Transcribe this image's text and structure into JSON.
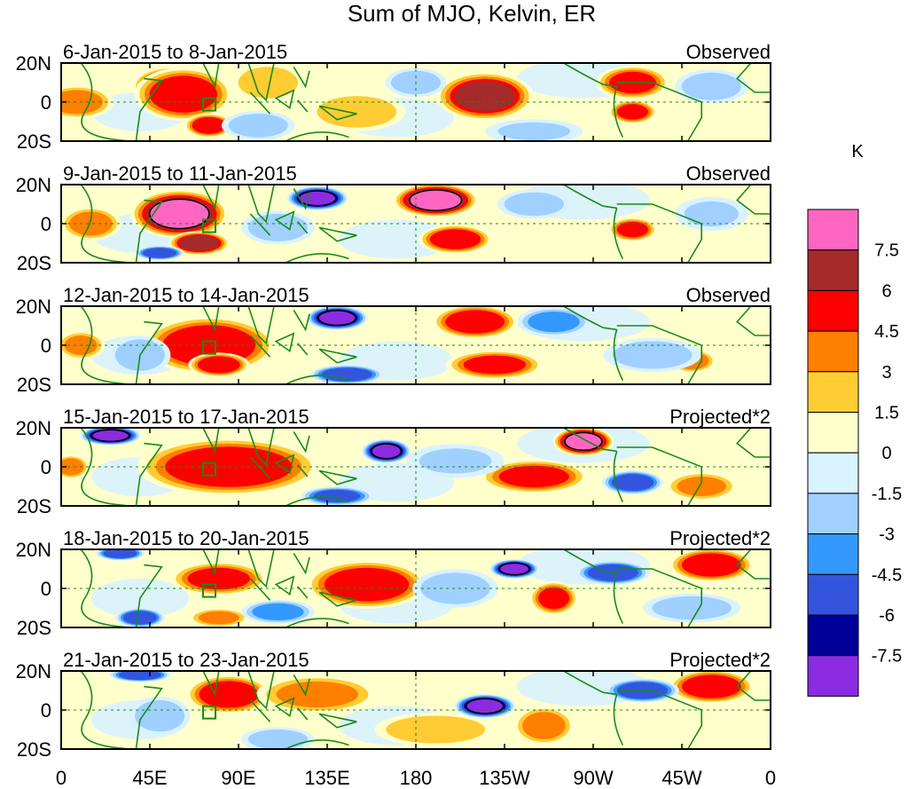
{
  "chart_data": {
    "type": "heatmap",
    "title": "Sum of MJO, Kelvin, ER",
    "units_label": "K",
    "x_ticks": [
      "0",
      "45E",
      "90E",
      "135E",
      "180",
      "135W",
      "90W",
      "45W",
      "0"
    ],
    "x_range_deg_east": [
      0,
      360
    ],
    "y_ticks": [
      "20N",
      "0",
      "20S"
    ],
    "y_range_deg": [
      -20,
      20
    ],
    "colorbar": {
      "levels": [
        "7.5",
        "6",
        "4.5",
        "3",
        "1.5",
        "0",
        "-1.5",
        "-3",
        "-4.5",
        "-6",
        "-7.5"
      ],
      "colors": [
        "#ff66c2",
        "#a52a2a",
        "#ff0000",
        "#ff7f00",
        "#ffcc33",
        "#ffffcc",
        "#d9f2ff",
        "#a0d0ff",
        "#3399ff",
        "#3355dd",
        "#000099",
        "#8b2be2"
      ]
    },
    "panels": [
      {
        "date_range": "6-Jan-2015 to 8-Jan-2015",
        "label": "Observed",
        "blobs": [
          {
            "lon": 55,
            "lat": 8,
            "value": 8,
            "width_deg": 30,
            "height_deg": 16
          },
          {
            "lon": 62,
            "lat": 4,
            "value": 6,
            "width_deg": 40,
            "height_deg": 22
          },
          {
            "lon": 8,
            "lat": 0,
            "value": 4,
            "width_deg": 30,
            "height_deg": 14
          },
          {
            "lon": 75,
            "lat": -12,
            "value": 6,
            "width_deg": 20,
            "height_deg": 10
          },
          {
            "lon": 105,
            "lat": 10,
            "value": 3,
            "width_deg": 30,
            "height_deg": 16
          },
          {
            "lon": 215,
            "lat": 3,
            "value": 6.5,
            "width_deg": 40,
            "height_deg": 20
          },
          {
            "lon": 290,
            "lat": 10,
            "value": 5,
            "width_deg": 30,
            "height_deg": 14
          },
          {
            "lon": 290,
            "lat": -5,
            "value": 5,
            "width_deg": 20,
            "height_deg": 10
          },
          {
            "lon": 150,
            "lat": -5,
            "value": 3,
            "width_deg": 40,
            "height_deg": 16
          },
          {
            "lon": 100,
            "lat": -12,
            "value": -3,
            "width_deg": 30,
            "height_deg": 12
          },
          {
            "lon": 180,
            "lat": 10,
            "value": -3,
            "width_deg": 25,
            "height_deg": 12
          },
          {
            "lon": 330,
            "lat": 8,
            "value": -3,
            "width_deg": 30,
            "height_deg": 14
          },
          {
            "lon": 240,
            "lat": -15,
            "value": -2,
            "width_deg": 40,
            "height_deg": 10
          }
        ]
      },
      {
        "date_range": "9-Jan-2015 to 11-Jan-2015",
        "label": "Observed",
        "blobs": [
          {
            "lon": 60,
            "lat": 5,
            "value": 8,
            "width_deg": 40,
            "height_deg": 20
          },
          {
            "lon": 70,
            "lat": -10,
            "value": 7,
            "width_deg": 25,
            "height_deg": 10
          },
          {
            "lon": 15,
            "lat": 0,
            "value": 4,
            "width_deg": 25,
            "height_deg": 14
          },
          {
            "lon": 190,
            "lat": 12,
            "value": 8,
            "width_deg": 35,
            "height_deg": 14
          },
          {
            "lon": 200,
            "lat": -8,
            "value": 6,
            "width_deg": 30,
            "height_deg": 12
          },
          {
            "lon": 290,
            "lat": -3,
            "value": 5,
            "width_deg": 20,
            "height_deg": 10
          },
          {
            "lon": 130,
            "lat": 13,
            "value": -8,
            "width_deg": 25,
            "height_deg": 10
          },
          {
            "lon": 110,
            "lat": -2,
            "value": -3,
            "width_deg": 30,
            "height_deg": 14
          },
          {
            "lon": 240,
            "lat": 10,
            "value": -3,
            "width_deg": 30,
            "height_deg": 12
          },
          {
            "lon": 330,
            "lat": 5,
            "value": -2,
            "width_deg": 30,
            "height_deg": 14
          },
          {
            "lon": 50,
            "lat": -15,
            "value": -6,
            "width_deg": 20,
            "height_deg": 6
          }
        ]
      },
      {
        "date_range": "12-Jan-2015 to 14-Jan-2015",
        "label": "Observed",
        "blobs": [
          {
            "lon": 70,
            "lat": 5,
            "value": 8,
            "width_deg": 40,
            "height_deg": 16
          },
          {
            "lon": 75,
            "lat": 0,
            "value": 6,
            "width_deg": 55,
            "height_deg": 24
          },
          {
            "lon": 80,
            "lat": -10,
            "value": 6,
            "width_deg": 25,
            "height_deg": 10
          },
          {
            "lon": 210,
            "lat": 12,
            "value": 6,
            "width_deg": 35,
            "height_deg": 14
          },
          {
            "lon": 220,
            "lat": -10,
            "value": 5,
            "width_deg": 40,
            "height_deg": 12
          },
          {
            "lon": 320,
            "lat": -8,
            "value": 4,
            "width_deg": 20,
            "height_deg": 10
          },
          {
            "lon": 10,
            "lat": 0,
            "value": 3.5,
            "width_deg": 20,
            "height_deg": 12
          },
          {
            "lon": 140,
            "lat": 14,
            "value": -8,
            "width_deg": 25,
            "height_deg": 10
          },
          {
            "lon": 145,
            "lat": -15,
            "value": -6,
            "width_deg": 30,
            "height_deg": 8
          },
          {
            "lon": 40,
            "lat": -5,
            "value": -3,
            "width_deg": 25,
            "height_deg": 16
          },
          {
            "lon": 250,
            "lat": 12,
            "value": -4,
            "width_deg": 30,
            "height_deg": 12
          },
          {
            "lon": 300,
            "lat": -5,
            "value": -3,
            "width_deg": 40,
            "height_deg": 14
          }
        ]
      },
      {
        "date_range": "15-Jan-2015 to 17-Jan-2015",
        "label": "Projected*2",
        "blobs": [
          {
            "lon": 80,
            "lat": 3,
            "value": 8,
            "width_deg": 40,
            "height_deg": 14
          },
          {
            "lon": 85,
            "lat": 0,
            "value": 6,
            "width_deg": 75,
            "height_deg": 24
          },
          {
            "lon": 265,
            "lat": 13,
            "value": 8,
            "width_deg": 25,
            "height_deg": 12
          },
          {
            "lon": 240,
            "lat": -5,
            "value": 5,
            "width_deg": 45,
            "height_deg": 14
          },
          {
            "lon": 5,
            "lat": 0,
            "value": 4,
            "width_deg": 15,
            "height_deg": 10
          },
          {
            "lon": 325,
            "lat": -10,
            "value": 3.5,
            "width_deg": 30,
            "height_deg": 12
          },
          {
            "lon": 25,
            "lat": 16,
            "value": -8,
            "width_deg": 25,
            "height_deg": 8
          },
          {
            "lon": 165,
            "lat": 8,
            "value": -8,
            "width_deg": 20,
            "height_deg": 10
          },
          {
            "lon": 290,
            "lat": -8,
            "value": -6,
            "width_deg": 25,
            "height_deg": 10
          },
          {
            "lon": 140,
            "lat": -15,
            "value": -5,
            "width_deg": 30,
            "height_deg": 8
          },
          {
            "lon": 200,
            "lat": 3,
            "value": -2,
            "width_deg": 40,
            "height_deg": 14
          }
        ]
      },
      {
        "date_range": "18-Jan-2015 to 20-Jan-2015",
        "label": "Projected*2",
        "blobs": [
          {
            "lon": 160,
            "lat": 3,
            "value": 8,
            "width_deg": 25,
            "height_deg": 10
          },
          {
            "lon": 155,
            "lat": 2,
            "value": 6,
            "width_deg": 50,
            "height_deg": 20
          },
          {
            "lon": 80,
            "lat": 5,
            "value": 5,
            "width_deg": 40,
            "height_deg": 14
          },
          {
            "lon": 330,
            "lat": 12,
            "value": 6,
            "width_deg": 35,
            "height_deg": 14
          },
          {
            "lon": 250,
            "lat": -5,
            "value": 5,
            "width_deg": 20,
            "height_deg": 14
          },
          {
            "lon": 80,
            "lat": -15,
            "value": 3.5,
            "width_deg": 25,
            "height_deg": 8
          },
          {
            "lon": 230,
            "lat": 10,
            "value": -8,
            "width_deg": 20,
            "height_deg": 8
          },
          {
            "lon": 280,
            "lat": 8,
            "value": -6,
            "width_deg": 30,
            "height_deg": 10
          },
          {
            "lon": 40,
            "lat": -15,
            "value": -6,
            "width_deg": 20,
            "height_deg": 8
          },
          {
            "lon": 30,
            "lat": 18,
            "value": -6,
            "width_deg": 20,
            "height_deg": 6
          },
          {
            "lon": 110,
            "lat": -12,
            "value": -4,
            "width_deg": 30,
            "height_deg": 10
          },
          {
            "lon": 200,
            "lat": 0,
            "value": -3,
            "width_deg": 35,
            "height_deg": 16
          },
          {
            "lon": 320,
            "lat": -10,
            "value": -3,
            "width_deg": 40,
            "height_deg": 12
          }
        ]
      },
      {
        "date_range": "21-Jan-2015 to 23-Jan-2015",
        "label": "Projected*2",
        "blobs": [
          {
            "lon": 85,
            "lat": 12,
            "value": 8,
            "width_deg": 20,
            "height_deg": 10
          },
          {
            "lon": 85,
            "lat": 8,
            "value": 6,
            "width_deg": 35,
            "height_deg": 16
          },
          {
            "lon": 330,
            "lat": 12,
            "value": 6,
            "width_deg": 35,
            "height_deg": 14
          },
          {
            "lon": 130,
            "lat": 8,
            "value": 3.5,
            "width_deg": 50,
            "height_deg": 16
          },
          {
            "lon": 245,
            "lat": -8,
            "value": 4,
            "width_deg": 25,
            "height_deg": 16
          },
          {
            "lon": 190,
            "lat": -10,
            "value": 3,
            "width_deg": 50,
            "height_deg": 14
          },
          {
            "lon": 215,
            "lat": 2,
            "value": -8,
            "width_deg": 25,
            "height_deg": 10
          },
          {
            "lon": 295,
            "lat": 10,
            "value": -6,
            "width_deg": 30,
            "height_deg": 10
          },
          {
            "lon": 40,
            "lat": 18,
            "value": -6,
            "width_deg": 25,
            "height_deg": 6
          },
          {
            "lon": 50,
            "lat": -3,
            "value": -3,
            "width_deg": 25,
            "height_deg": 16
          },
          {
            "lon": 110,
            "lat": -15,
            "value": -3,
            "width_deg": 30,
            "height_deg": 10
          }
        ]
      }
    ]
  }
}
